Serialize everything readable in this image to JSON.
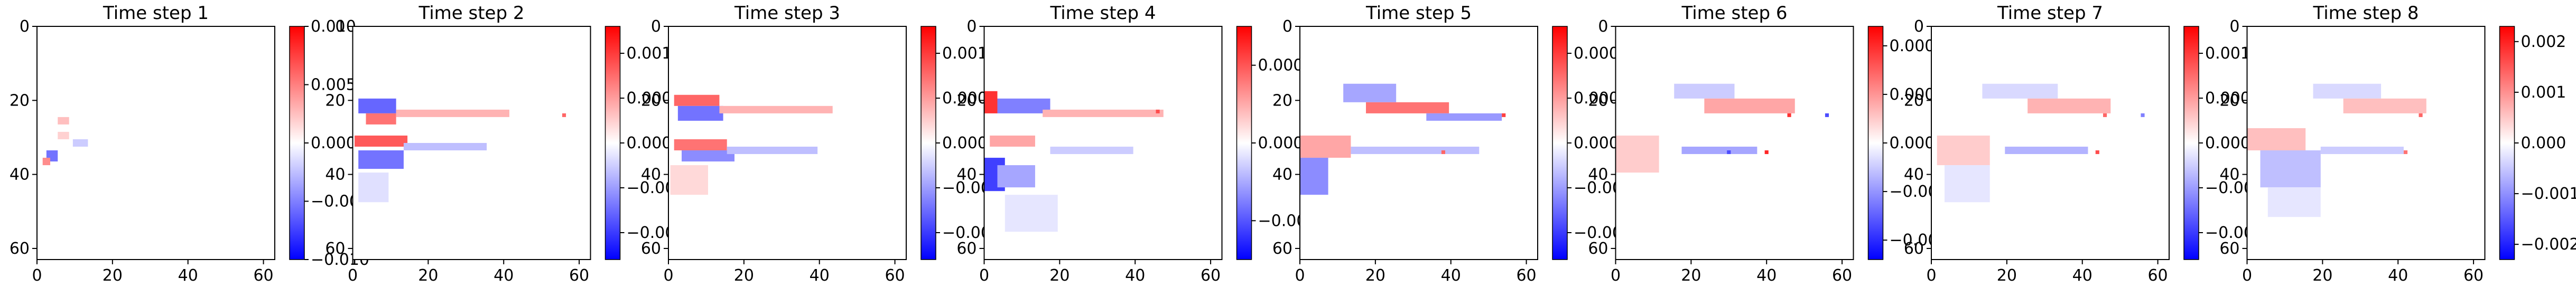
{
  "figure": {
    "description_free": true
  },
  "chart_data": [
    {
      "type": "heatmap",
      "title": "Time step 1",
      "xlim": [
        0,
        63
      ],
      "ylim": [
        63,
        0
      ],
      "x_ticks": [
        "0",
        "20",
        "40",
        "60"
      ],
      "y_ticks": [
        "0",
        "20",
        "40",
        "60"
      ],
      "colorbar": {
        "min": -0.01,
        "max": 0.01,
        "ticks": [
          "0.010",
          "0.005",
          "0.000",
          "−0.005",
          "−0.010"
        ]
      },
      "colormap": {
        "neg": "#0000ff",
        "zero": "#ffffff",
        "pos": "#ff0000"
      },
      "features": [
        {
          "x": 6,
          "y": 25,
          "w": 3,
          "h": 2,
          "v": 0.25
        },
        {
          "x": 3,
          "y": 34,
          "w": 3,
          "h": 3,
          "v": -0.55
        },
        {
          "x": 2,
          "y": 36,
          "w": 2,
          "h": 2,
          "v": 0.45
        },
        {
          "x": 10,
          "y": 31,
          "w": 4,
          "h": 2,
          "v": -0.2
        },
        {
          "x": 6,
          "y": 29,
          "w": 3,
          "h": 2,
          "v": 0.18
        }
      ]
    },
    {
      "type": "heatmap",
      "title": "Time step 2",
      "xlim": [
        0,
        63
      ],
      "ylim": [
        63,
        0
      ],
      "x_ticks": [
        "0",
        "20",
        "40",
        "60"
      ],
      "y_ticks": [
        "0",
        "20",
        "40",
        "60"
      ],
      "colorbar": {
        "min": -0.0013,
        "max": 0.0013,
        "ticks": [
          "0.0010",
          "0.0005",
          "0.0000",
          "−0.0005",
          "−0.0010"
        ]
      },
      "colormap": {
        "neg": "#0000ff",
        "zero": "#ffffff",
        "pos": "#ff0000"
      },
      "features": [
        {
          "x": 2,
          "y": 20,
          "w": 10,
          "h": 4,
          "v": -0.6
        },
        {
          "x": 4,
          "y": 24,
          "w": 8,
          "h": 3,
          "v": 0.55
        },
        {
          "x": 1,
          "y": 30,
          "w": 14,
          "h": 3,
          "v": 0.65
        },
        {
          "x": 2,
          "y": 34,
          "w": 12,
          "h": 5,
          "v": -0.55
        },
        {
          "x": 12,
          "y": 23,
          "w": 30,
          "h": 2,
          "v": 0.3
        },
        {
          "x": 14,
          "y": 32,
          "w": 22,
          "h": 2,
          "v": -0.25
        },
        {
          "x": 56,
          "y": 24,
          "w": 1,
          "h": 1,
          "v": 0.6
        },
        {
          "x": 2,
          "y": 40,
          "w": 8,
          "h": 8,
          "v": -0.12
        }
      ]
    },
    {
      "type": "heatmap",
      "title": "Time step 3",
      "xlim": [
        0,
        63
      ],
      "ylim": [
        63,
        0
      ],
      "x_ticks": [
        "0",
        "20",
        "40",
        "60"
      ],
      "y_ticks": [
        "0",
        "20",
        "40",
        "60"
      ],
      "colorbar": {
        "min": -0.0013,
        "max": 0.0013,
        "ticks": [
          "0.0010",
          "0.0005",
          "0.0000",
          "−0.0005",
          "−0.0010"
        ]
      },
      "colormap": {
        "neg": "#0000ff",
        "zero": "#ffffff",
        "pos": "#ff0000"
      },
      "features": [
        {
          "x": 2,
          "y": 19,
          "w": 12,
          "h": 3,
          "v": 0.6
        },
        {
          "x": 3,
          "y": 22,
          "w": 12,
          "h": 4,
          "v": -0.55
        },
        {
          "x": 2,
          "y": 31,
          "w": 14,
          "h": 3,
          "v": 0.55
        },
        {
          "x": 4,
          "y": 34,
          "w": 14,
          "h": 3,
          "v": -0.45
        },
        {
          "x": 14,
          "y": 22,
          "w": 30,
          "h": 2,
          "v": 0.3
        },
        {
          "x": 16,
          "y": 33,
          "w": 24,
          "h": 2,
          "v": -0.25
        },
        {
          "x": 1,
          "y": 38,
          "w": 10,
          "h": 8,
          "v": 0.15
        }
      ]
    },
    {
      "type": "heatmap",
      "title": "Time step 4",
      "xlim": [
        0,
        63
      ],
      "ylim": [
        63,
        0
      ],
      "x_ticks": [
        "0",
        "20",
        "40",
        "60"
      ],
      "y_ticks": [
        "0",
        "20",
        "40",
        "60"
      ],
      "colorbar": {
        "min": -0.00075,
        "max": 0.00075,
        "ticks": [
          "0.0005",
          "0.0000",
          "−0.0005"
        ]
      },
      "colormap": {
        "neg": "#0000ff",
        "zero": "#ffffff",
        "pos": "#ff0000"
      },
      "features": [
        {
          "x": 0,
          "y": 18,
          "w": 4,
          "h": 6,
          "v": 0.8
        },
        {
          "x": 4,
          "y": 20,
          "w": 14,
          "h": 4,
          "v": -0.5
        },
        {
          "x": 0,
          "y": 36,
          "w": 6,
          "h": 9,
          "v": -0.75
        },
        {
          "x": 4,
          "y": 38,
          "w": 10,
          "h": 6,
          "v": -0.35
        },
        {
          "x": 2,
          "y": 30,
          "w": 12,
          "h": 3,
          "v": 0.35
        },
        {
          "x": 16,
          "y": 23,
          "w": 32,
          "h": 2,
          "v": 0.3
        },
        {
          "x": 46,
          "y": 23,
          "w": 1,
          "h": 1,
          "v": 0.7
        },
        {
          "x": 18,
          "y": 33,
          "w": 22,
          "h": 2,
          "v": -0.2
        },
        {
          "x": 6,
          "y": 46,
          "w": 14,
          "h": 10,
          "v": -0.1
        }
      ]
    },
    {
      "type": "heatmap",
      "title": "Time step 5",
      "xlim": [
        0,
        63
      ],
      "ylim": [
        63,
        0
      ],
      "x_ticks": [
        "0",
        "20",
        "40",
        "60"
      ],
      "y_ticks": [
        "0",
        "20",
        "40",
        "60"
      ],
      "colorbar": {
        "min": -0.00065,
        "max": 0.00065,
        "ticks": [
          "0.00050",
          "0.00025",
          "0.00000",
          "−0.00025",
          "−0.00050"
        ]
      },
      "colormap": {
        "neg": "#0000ff",
        "zero": "#ffffff",
        "pos": "#ff0000"
      },
      "features": [
        {
          "x": 12,
          "y": 16,
          "w": 14,
          "h": 5,
          "v": -0.35
        },
        {
          "x": 18,
          "y": 21,
          "w": 22,
          "h": 3,
          "v": 0.55
        },
        {
          "x": 34,
          "y": 24,
          "w": 20,
          "h": 2,
          "v": -0.4
        },
        {
          "x": 54,
          "y": 24,
          "w": 1,
          "h": 1,
          "v": 0.75
        },
        {
          "x": 0,
          "y": 30,
          "w": 14,
          "h": 6,
          "v": 0.35
        },
        {
          "x": 0,
          "y": 36,
          "w": 8,
          "h": 10,
          "v": -0.45
        },
        {
          "x": 14,
          "y": 33,
          "w": 34,
          "h": 2,
          "v": -0.25
        },
        {
          "x": 38,
          "y": 34,
          "w": 1,
          "h": 1,
          "v": 0.6
        }
      ]
    },
    {
      "type": "heatmap",
      "title": "Time step 6",
      "xlim": [
        0,
        63
      ],
      "ylim": [
        63,
        0
      ],
      "x_ticks": [
        "0",
        "20",
        "40",
        "60"
      ],
      "y_ticks": [
        "0",
        "20",
        "40",
        "60"
      ],
      "colorbar": {
        "min": -0.0006,
        "max": 0.0006,
        "ticks": [
          "0.00050",
          "0.00025",
          "0.00000",
          "−0.00025",
          "−0.00050"
        ]
      },
      "colormap": {
        "neg": "#0000ff",
        "zero": "#ffffff",
        "pos": "#ff0000"
      },
      "features": [
        {
          "x": 16,
          "y": 16,
          "w": 16,
          "h": 4,
          "v": -0.2
        },
        {
          "x": 24,
          "y": 20,
          "w": 24,
          "h": 4,
          "v": 0.35
        },
        {
          "x": 46,
          "y": 24,
          "w": 1,
          "h": 1,
          "v": 0.8
        },
        {
          "x": 56,
          "y": 24,
          "w": 1,
          "h": 1,
          "v": -0.7
        },
        {
          "x": 0,
          "y": 30,
          "w": 12,
          "h": 10,
          "v": 0.2
        },
        {
          "x": 18,
          "y": 33,
          "w": 20,
          "h": 2,
          "v": -0.35
        },
        {
          "x": 40,
          "y": 34,
          "w": 1,
          "h": 1,
          "v": 0.85
        },
        {
          "x": 30,
          "y": 34,
          "w": 1,
          "h": 1,
          "v": -0.7
        }
      ]
    },
    {
      "type": "heatmap",
      "title": "Time step 7",
      "xlim": [
        0,
        63
      ],
      "ylim": [
        63,
        0
      ],
      "x_ticks": [
        "0",
        "20",
        "40",
        "60"
      ],
      "y_ticks": [
        "0",
        "20",
        "40",
        "60"
      ],
      "colorbar": {
        "min": -0.0013,
        "max": 0.0013,
        "ticks": [
          "0.0010",
          "0.0005",
          "0.0000",
          "−0.0005",
          "−0.0010"
        ]
      },
      "colormap": {
        "neg": "#0000ff",
        "zero": "#ffffff",
        "pos": "#ff0000"
      },
      "features": [
        {
          "x": 14,
          "y": 16,
          "w": 20,
          "h": 4,
          "v": -0.15
        },
        {
          "x": 26,
          "y": 20,
          "w": 22,
          "h": 4,
          "v": 0.3
        },
        {
          "x": 46,
          "y": 24,
          "w": 1,
          "h": 1,
          "v": 0.6
        },
        {
          "x": 56,
          "y": 24,
          "w": 1,
          "h": 1,
          "v": -0.5
        },
        {
          "x": 2,
          "y": 30,
          "w": 14,
          "h": 8,
          "v": 0.2
        },
        {
          "x": 20,
          "y": 33,
          "w": 22,
          "h": 2,
          "v": -0.3
        },
        {
          "x": 44,
          "y": 34,
          "w": 1,
          "h": 1,
          "v": 0.7
        },
        {
          "x": 4,
          "y": 38,
          "w": 12,
          "h": 10,
          "v": -0.1
        }
      ]
    },
    {
      "type": "heatmap",
      "title": "Time step 8",
      "xlim": [
        0,
        63
      ],
      "ylim": [
        63,
        0
      ],
      "x_ticks": [
        "0",
        "20",
        "40",
        "60"
      ],
      "y_ticks": [
        "0",
        "20",
        "40",
        "60"
      ],
      "colorbar": {
        "min": -0.0023,
        "max": 0.0023,
        "ticks": [
          "0.002",
          "0.001",
          "0.000",
          "−0.001",
          "−0.002"
        ]
      },
      "colormap": {
        "neg": "#0000ff",
        "zero": "#ffffff",
        "pos": "#ff0000"
      },
      "features": [
        {
          "x": 18,
          "y": 16,
          "w": 18,
          "h": 4,
          "v": -0.15
        },
        {
          "x": 26,
          "y": 20,
          "w": 22,
          "h": 4,
          "v": 0.25
        },
        {
          "x": 46,
          "y": 24,
          "w": 1,
          "h": 1,
          "v": 0.6
        },
        {
          "x": 0,
          "y": 28,
          "w": 16,
          "h": 6,
          "v": 0.25
        },
        {
          "x": 4,
          "y": 34,
          "w": 16,
          "h": 10,
          "v": -0.25
        },
        {
          "x": 20,
          "y": 33,
          "w": 22,
          "h": 2,
          "v": -0.2
        },
        {
          "x": 42,
          "y": 34,
          "w": 1,
          "h": 1,
          "v": 0.55
        },
        {
          "x": 6,
          "y": 44,
          "w": 14,
          "h": 8,
          "v": -0.1
        }
      ]
    }
  ]
}
